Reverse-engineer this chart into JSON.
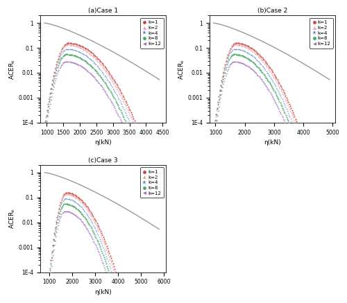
{
  "cases": [
    {
      "label": "(a)Case 1",
      "xlim": [
        800,
        4600
      ],
      "xticks": [
        1000,
        1500,
        2000,
        2500,
        3000,
        3500,
        4000,
        4500
      ],
      "x_start": 930,
      "x_peak_base": 1600,
      "x_end": 4200,
      "gray_end": 4400
    },
    {
      "label": "(b)Case 2",
      "xlim": [
        800,
        5100
      ],
      "xticks": [
        1000,
        2000,
        3000,
        4000,
        5000
      ],
      "x_start": 930,
      "x_peak_base": 1650,
      "x_end": 4600,
      "gray_end": 4900
    },
    {
      "label": "(c)Case 3",
      "xlim": [
        600,
        6100
      ],
      "xticks": [
        1000,
        2000,
        3000,
        4000,
        5000,
        6000
      ],
      "x_start": 800,
      "x_peak_base": 1700,
      "x_end": 5400,
      "gray_end": 5800
    }
  ],
  "ylim": [
    0.0001,
    2.0
  ],
  "yticks": [
    0.0001,
    0.001,
    0.01,
    0.1,
    1
  ],
  "yticklabels": [
    "1E-4",
    "0.001",
    "0.01",
    "0.1",
    "1"
  ],
  "ylabel": "ACER$_k$",
  "xlabel": "η(kN)",
  "k_values": [
    1,
    2,
    4,
    8,
    12
  ],
  "colors": {
    "1": "#cc4444",
    "2": "#e8a0a0",
    "4": "#5588cc",
    "8": "#44aa66",
    "12": "#9966bb"
  },
  "markers": {
    "1": "o",
    "2": "^",
    "4": "*",
    "8": "o",
    "12": "<"
  },
  "peak_heights": {
    "1": 0.155,
    "2": 0.135,
    "4": 0.09,
    "8": 0.055,
    "12": 0.028
  },
  "peak_offsets": {
    "1": 50,
    "2": 30,
    "4": 10,
    "8": -10,
    "12": -30
  },
  "gray_color": "#999999",
  "n_points": 120
}
